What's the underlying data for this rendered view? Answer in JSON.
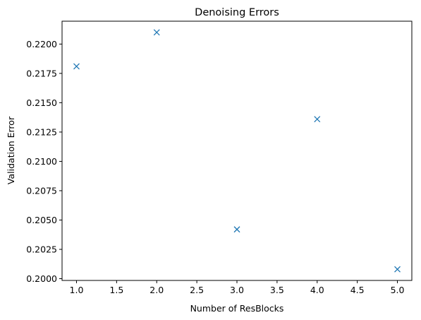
{
  "chart_data": {
    "type": "scatter",
    "title": "Denoising Errors",
    "xlabel": "Number of ResBlocks",
    "ylabel": "Validation Error",
    "x": [
      1.0,
      2.0,
      3.0,
      4.0,
      5.0
    ],
    "y": [
      0.2181,
      0.221,
      0.2042,
      0.2136,
      0.2008
    ],
    "xlim": [
      0.82,
      5.18
    ],
    "ylim": [
      0.19985,
      0.22195
    ],
    "xticks": [
      1.0,
      1.5,
      2.0,
      2.5,
      3.0,
      3.5,
      4.0,
      4.5,
      5.0
    ],
    "xtick_labels": [
      "1.0",
      "1.5",
      "2.0",
      "2.5",
      "3.0",
      "3.5",
      "4.0",
      "4.5",
      "5.0"
    ],
    "yticks": [
      0.2,
      0.2025,
      0.205,
      0.2075,
      0.21,
      0.2125,
      0.215,
      0.2175,
      0.22
    ],
    "ytick_labels": [
      "0.2000",
      "0.2025",
      "0.2050",
      "0.2075",
      "0.2100",
      "0.2125",
      "0.2150",
      "0.2175",
      "0.2200"
    ],
    "marker": "x",
    "marker_color": "#1f77b4",
    "grid": false
  }
}
